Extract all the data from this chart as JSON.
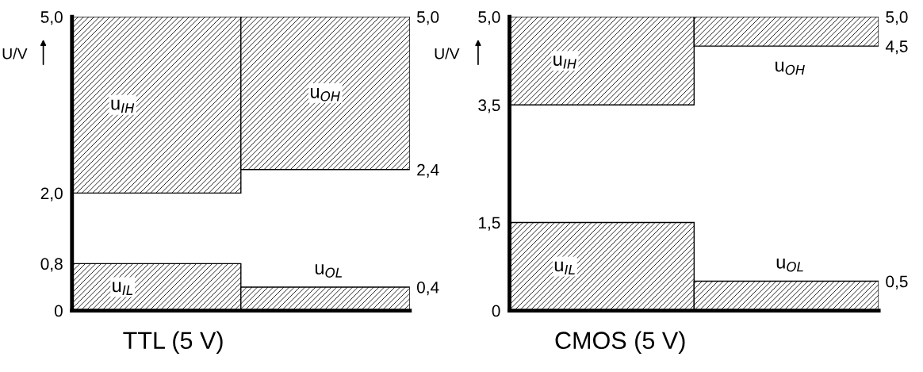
{
  "chart_data": [
    {
      "type": "bar",
      "title": "TTL (5 V)",
      "ylabel": "U/V",
      "categories": [
        null,
        null
      ],
      "color": "#000000",
      "ylim": [
        0,
        5
      ],
      "yticks": [
        0,
        {
          "value": 0.8,
          "label": "0,8"
        },
        {
          "value": 2.0,
          "label": "2,0"
        },
        {
          "value": 5.0,
          "label": "5,0"
        }
      ],
      "y2lim": [
        0,
        5
      ],
      "y2ticks": [
        {
          "value": 0.4,
          "label": "0,4"
        },
        {
          "value": 2.4,
          "label": "2,4"
        },
        {
          "value": 5.0,
          "label": "5,0"
        }
      ],
      "series": [
        {
          "name": "u$_{IL}$",
          "values": [
            0.8,
            null
          ],
          "base": [
            0,
            null
          ]
        },
        {
          "name": "u$_{IH}$",
          "values": [
            3.0,
            null
          ],
          "base": [
            2.0,
            null
          ]
        },
        {
          "name": "u$_{OL}$",
          "values": [
            null,
            0.4
          ],
          "base": [
            null,
            0
          ]
        },
        {
          "name": "u$_{OH}$",
          "values": [
            null,
            2.6
          ],
          "base": [
            null,
            2.4
          ]
        }
      ]
    },
    {
      "type": "bar",
      "title": "CMOS (5 V)",
      "ylabel": "U/V",
      "categories": [
        null,
        null
      ],
      "color": "#000000",
      "ylim": [
        0,
        5
      ],
      "yticks": [
        0,
        {
          "value": 1.5,
          "label": "1,5"
        },
        {
          "value": 3.5,
          "label": "3,5"
        },
        {
          "value": 5.0,
          "label": "5,0"
        }
      ],
      "y2lim": [
        0,
        5
      ],
      "y2ticks": [
        {
          "value": 0.5,
          "label": "0,5"
        },
        {
          "value": 4.5,
          "label": "4,5"
        },
        {
          "value": 5.0,
          "label": "5,0"
        }
      ],
      "series": [
        {
          "name": "u$_{IL}$",
          "values": [
            1.5,
            null
          ],
          "base": [
            0,
            null
          ]
        },
        {
          "name": "u$_{IH}$",
          "values": [
            1.5,
            null
          ],
          "base": [
            3.5,
            null
          ]
        },
        {
          "name": "u$_{OL}$",
          "values": [
            null,
            0.5
          ],
          "base": [
            null,
            0
          ]
        },
        {
          "name": "u$_{OH}$",
          "values": [
            null,
            0.5
          ],
          "base": [
            null,
            4.5
          ]
        }
      ]
    }
  ]
}
